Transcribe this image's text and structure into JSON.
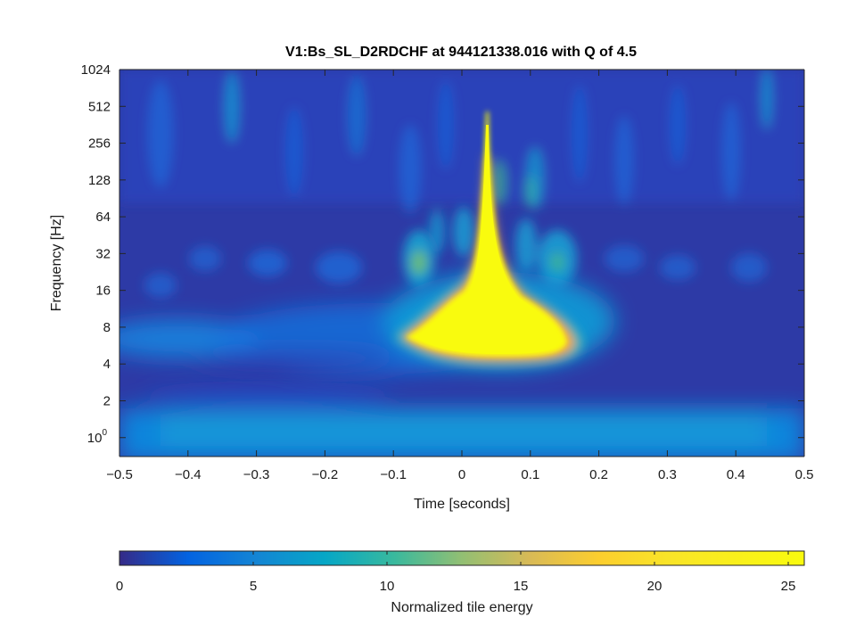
{
  "chart_data": {
    "type": "heatmap",
    "title": "V1:Bs_SL_D2RDCHF at 944121338.016 with Q of 4.5",
    "xlabel": "Time [seconds]",
    "ylabel": "Frequency [Hz]",
    "xlim": [
      -0.5,
      0.5
    ],
    "ylim": [
      0.7,
      1024
    ],
    "yscale": "log2",
    "x_ticks": [
      -0.5,
      -0.4,
      -0.3,
      -0.2,
      -0.1,
      0,
      0.1,
      0.2,
      0.3,
      0.4,
      0.5
    ],
    "x_tick_labels": [
      "−0.5",
      "−0.4",
      "−0.3",
      "−0.2",
      "−0.1",
      "0",
      "0.1",
      "0.2",
      "0.3",
      "0.4",
      "0.5"
    ],
    "y_ticks": [
      1,
      2,
      4,
      8,
      16,
      32,
      64,
      128,
      256,
      512,
      1024
    ],
    "y_tick_labels": [
      {
        "base": "10",
        "exp": "0"
      },
      {
        "base": "2"
      },
      {
        "base": "4"
      },
      {
        "base": "8"
      },
      {
        "base": "16"
      },
      {
        "base": "32"
      },
      {
        "base": "64"
      },
      {
        "base": "128"
      },
      {
        "base": "256"
      },
      {
        "base": "512"
      },
      {
        "base": "1024"
      }
    ],
    "colorbar": {
      "label": "Normalized tile energy",
      "range": [
        0,
        25.6
      ],
      "ticks": [
        0,
        5,
        10,
        15,
        20,
        25
      ],
      "tick_labels": [
        "0",
        "5",
        "10",
        "15",
        "20",
        "25"
      ],
      "colormap": "parula"
    },
    "features": [
      {
        "name": "chirp-peak",
        "t": 0.04,
        "f_low": 4.5,
        "f_high": 550,
        "energy": 25.6
      },
      {
        "name": "low-band",
        "t_range": [
          -0.5,
          0.5
        ],
        "f": 1,
        "energy": 5.5
      },
      {
        "name": "side-blob-left",
        "t": -0.06,
        "f": 30,
        "energy": 15
      },
      {
        "name": "side-blob-right",
        "t": 0.14,
        "f": 30,
        "energy": 13
      }
    ]
  },
  "colors": {
    "background": "#ffffff",
    "axis": "#262626",
    "low": "#352a87",
    "mid": "#0f9bd7",
    "high": "#f9fb0e"
  }
}
